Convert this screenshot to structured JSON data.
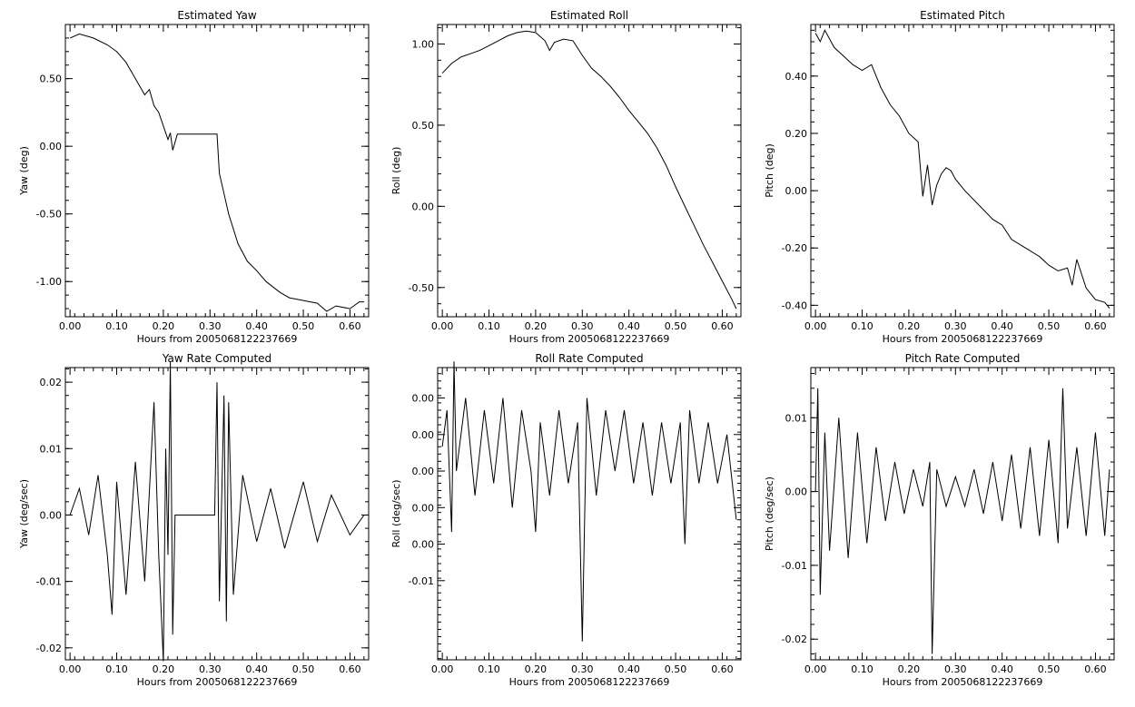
{
  "chart_data": [
    {
      "type": "line",
      "title": "Estimated Yaw",
      "xlabel": "Hours from 2005068122237669",
      "ylabel": "Yaw (deg)",
      "xlim": [
        -0.01,
        0.64
      ],
      "ylim": [
        -1.26,
        0.9
      ],
      "xticks": [
        "0.00",
        "0.10",
        "0.20",
        "0.30",
        "0.40",
        "0.50",
        "0.60"
      ],
      "xtick_values": [
        0.0,
        0.1,
        0.2,
        0.3,
        0.4,
        0.5,
        0.6
      ],
      "yticks": [
        "0.50",
        "0.00",
        "-0.50",
        "-1.00"
      ],
      "ytick_values": [
        0.5,
        0.0,
        -0.5,
        -1.0
      ],
      "series": [
        {
          "x": [
            0.0,
            0.02,
            0.05,
            0.08,
            0.1,
            0.12,
            0.14,
            0.16,
            0.17,
            0.18,
            0.19,
            0.2,
            0.21,
            0.215,
            0.22,
            0.23,
            0.26,
            0.29,
            0.31,
            0.315,
            0.32,
            0.33,
            0.34,
            0.36,
            0.38,
            0.4,
            0.42,
            0.45,
            0.47,
            0.5,
            0.53,
            0.55,
            0.57,
            0.6,
            0.62,
            0.63
          ],
          "y": [
            0.8,
            0.83,
            0.8,
            0.75,
            0.7,
            0.62,
            0.5,
            0.38,
            0.42,
            0.3,
            0.25,
            0.15,
            0.05,
            0.1,
            -0.03,
            0.09,
            0.09,
            0.09,
            0.09,
            0.09,
            -0.2,
            -0.35,
            -0.5,
            -0.72,
            -0.85,
            -0.92,
            -1.0,
            -1.08,
            -1.12,
            -1.14,
            -1.16,
            -1.22,
            -1.18,
            -1.2,
            -1.15,
            -1.15
          ]
        }
      ]
    },
    {
      "type": "line",
      "title": "Estimated Roll",
      "xlabel": "Hours from 2005068122237669",
      "ylabel": "Roll (deg)",
      "xlim": [
        -0.01,
        0.64
      ],
      "ylim": [
        -0.68,
        1.12
      ],
      "xticks": [
        "0.00",
        "0.10",
        "0.20",
        "0.30",
        "0.40",
        "0.50",
        "0.60"
      ],
      "xtick_values": [
        0.0,
        0.1,
        0.2,
        0.3,
        0.4,
        0.5,
        0.6
      ],
      "yticks": [
        "1.00",
        "0.50",
        "0.00",
        "-0.50"
      ],
      "ytick_values": [
        1.0,
        0.5,
        0.0,
        -0.5
      ],
      "series": [
        {
          "x": [
            0.0,
            0.02,
            0.04,
            0.06,
            0.08,
            0.1,
            0.12,
            0.14,
            0.16,
            0.18,
            0.2,
            0.22,
            0.23,
            0.24,
            0.26,
            0.28,
            0.3,
            0.32,
            0.34,
            0.36,
            0.38,
            0.4,
            0.42,
            0.44,
            0.46,
            0.48,
            0.5,
            0.52,
            0.54,
            0.56,
            0.58,
            0.6,
            0.62,
            0.63
          ],
          "y": [
            0.82,
            0.88,
            0.92,
            0.94,
            0.96,
            0.99,
            1.02,
            1.05,
            1.07,
            1.08,
            1.07,
            1.02,
            0.96,
            1.01,
            1.03,
            1.02,
            0.93,
            0.85,
            0.8,
            0.74,
            0.67,
            0.59,
            0.52,
            0.45,
            0.36,
            0.25,
            0.12,
            0.0,
            -0.12,
            -0.24,
            -0.35,
            -0.46,
            -0.57,
            -0.63
          ]
        }
      ]
    },
    {
      "type": "line",
      "title": "Estimated Pitch",
      "xlabel": "Hours from 2005068122237669",
      "ylabel": "Pitch (deg)",
      "xlim": [
        -0.01,
        0.64
      ],
      "ylim": [
        -0.44,
        0.58
      ],
      "xticks": [
        "0.00",
        "0.10",
        "0.20",
        "0.30",
        "0.40",
        "0.50",
        "0.60"
      ],
      "xtick_values": [
        0.0,
        0.1,
        0.2,
        0.3,
        0.4,
        0.5,
        0.6
      ],
      "yticks": [
        "0.40",
        "0.20",
        "0.00",
        "-0.20",
        "-0.40"
      ],
      "ytick_values": [
        0.4,
        0.2,
        0.0,
        -0.2,
        -0.4
      ],
      "series": [
        {
          "x": [
            0.0,
            0.01,
            0.02,
            0.04,
            0.06,
            0.08,
            0.1,
            0.12,
            0.14,
            0.16,
            0.18,
            0.2,
            0.22,
            0.23,
            0.24,
            0.25,
            0.26,
            0.27,
            0.28,
            0.29,
            0.3,
            0.32,
            0.35,
            0.38,
            0.4,
            0.42,
            0.45,
            0.48,
            0.5,
            0.52,
            0.54,
            0.55,
            0.56,
            0.58,
            0.6,
            0.62,
            0.63
          ],
          "y": [
            0.55,
            0.52,
            0.56,
            0.5,
            0.47,
            0.44,
            0.42,
            0.44,
            0.36,
            0.3,
            0.26,
            0.2,
            0.17,
            -0.02,
            0.09,
            -0.05,
            0.02,
            0.06,
            0.08,
            0.07,
            0.04,
            0.0,
            -0.05,
            -0.1,
            -0.12,
            -0.17,
            -0.2,
            -0.23,
            -0.26,
            -0.28,
            -0.27,
            -0.33,
            -0.24,
            -0.34,
            -0.38,
            -0.39,
            -0.41
          ]
        }
      ]
    },
    {
      "type": "line",
      "title": "Yaw Rate Computed",
      "xlabel": "Hours from 2005068122237669",
      "ylabel": "Yaw (deg/sec)",
      "xlim": [
        -0.01,
        0.64
      ],
      "ylim": [
        -0.0218,
        0.0222
      ],
      "xticks": [
        "0.00",
        "0.10",
        "0.20",
        "0.30",
        "0.40",
        "0.50",
        "0.60"
      ],
      "xtick_values": [
        0.0,
        0.1,
        0.2,
        0.3,
        0.4,
        0.5,
        0.6
      ],
      "yticks": [
        "0.02",
        "0.01",
        "0.00",
        "-0.01",
        "-0.02"
      ],
      "ytick_values": [
        0.02,
        0.01,
        0.0,
        -0.01,
        -0.02
      ],
      "series": [
        {
          "x": [
            0.0,
            0.02,
            0.04,
            0.06,
            0.08,
            0.09,
            0.1,
            0.12,
            0.14,
            0.16,
            0.18,
            0.19,
            0.2,
            0.205,
            0.21,
            0.215,
            0.22,
            0.225,
            0.23,
            0.26,
            0.29,
            0.31,
            0.315,
            0.32,
            0.33,
            0.335,
            0.34,
            0.35,
            0.37,
            0.4,
            0.43,
            0.46,
            0.5,
            0.53,
            0.56,
            0.6,
            0.63
          ],
          "y": [
            0.0,
            0.004,
            -0.003,
            0.006,
            -0.006,
            -0.015,
            0.005,
            -0.012,
            0.008,
            -0.01,
            0.017,
            -0.006,
            -0.022,
            0.01,
            -0.006,
            0.023,
            -0.018,
            0.0,
            0.0,
            0.0,
            0.0,
            0.0,
            0.02,
            -0.013,
            0.018,
            -0.016,
            0.017,
            -0.012,
            0.006,
            -0.004,
            0.004,
            -0.005,
            0.005,
            -0.004,
            0.003,
            -0.003,
            0.0
          ]
        }
      ]
    },
    {
      "type": "line",
      "title": "Roll Rate Computed",
      "xlabel": "Hours from 2005068122237669",
      "ylabel": "Roll (deg/sec)",
      "xlim": [
        -0.01,
        0.64
      ],
      "ylim": [
        -0.0175,
        0.0065
      ],
      "xticks": [
        "0.00",
        "0.10",
        "0.20",
        "0.30",
        "0.40",
        "0.50",
        "0.60"
      ],
      "xtick_values": [
        0.0,
        0.1,
        0.2,
        0.3,
        0.4,
        0.5,
        0.6
      ],
      "yticks": [
        "0.00",
        "0.00",
        "0.00",
        "0.00",
        "0.00",
        "-0.01"
      ],
      "ytick_values": [
        0.004,
        0.001,
        -0.002,
        -0.005,
        -0.008,
        -0.011
      ],
      "series": [
        {
          "x": [
            0.0,
            0.01,
            0.02,
            0.025,
            0.03,
            0.05,
            0.07,
            0.09,
            0.11,
            0.13,
            0.15,
            0.17,
            0.19,
            0.2,
            0.21,
            0.23,
            0.25,
            0.27,
            0.29,
            0.3,
            0.31,
            0.33,
            0.35,
            0.37,
            0.39,
            0.41,
            0.43,
            0.45,
            0.47,
            0.49,
            0.51,
            0.52,
            0.53,
            0.55,
            0.57,
            0.59,
            0.61,
            0.63
          ],
          "y": [
            0.0,
            0.003,
            -0.007,
            0.007,
            -0.002,
            0.004,
            -0.004,
            0.003,
            -0.003,
            0.004,
            -0.005,
            0.003,
            -0.002,
            -0.007,
            0.002,
            -0.004,
            0.003,
            -0.003,
            0.002,
            -0.016,
            0.004,
            -0.004,
            0.003,
            -0.002,
            0.003,
            -0.003,
            0.002,
            -0.004,
            0.002,
            -0.003,
            0.002,
            -0.008,
            0.003,
            -0.003,
            0.002,
            -0.003,
            0.001,
            -0.006
          ]
        }
      ]
    },
    {
      "type": "line",
      "title": "Pitch Rate Computed",
      "xlabel": "Hours from 2005068122237669",
      "ylabel": "Pitch (deg/sec)",
      "xlim": [
        -0.01,
        0.64
      ],
      "ylim": [
        -0.0228,
        0.0168
      ],
      "xticks": [
        "0.00",
        "0.10",
        "0.20",
        "0.30",
        "0.40",
        "0.50",
        "0.60"
      ],
      "xtick_values": [
        0.0,
        0.1,
        0.2,
        0.3,
        0.4,
        0.5,
        0.6
      ],
      "yticks": [
        "0.01",
        "0.00",
        "-0.01",
        "-0.02"
      ],
      "ytick_values": [
        0.01,
        0.0,
        -0.01,
        -0.02
      ],
      "series": [
        {
          "x": [
            0.0,
            0.005,
            0.01,
            0.02,
            0.03,
            0.05,
            0.07,
            0.09,
            0.11,
            0.13,
            0.15,
            0.17,
            0.19,
            0.21,
            0.23,
            0.245,
            0.25,
            0.26,
            0.28,
            0.3,
            0.32,
            0.34,
            0.36,
            0.38,
            0.4,
            0.42,
            0.44,
            0.46,
            0.48,
            0.5,
            0.52,
            0.53,
            0.54,
            0.56,
            0.58,
            0.6,
            0.62,
            0.63
          ],
          "y": [
            0.0,
            0.014,
            -0.014,
            0.008,
            -0.008,
            0.01,
            -0.009,
            0.008,
            -0.007,
            0.006,
            -0.004,
            0.004,
            -0.003,
            0.003,
            -0.002,
            0.004,
            -0.022,
            0.003,
            -0.002,
            0.002,
            -0.002,
            0.003,
            -0.003,
            0.004,
            -0.004,
            0.005,
            -0.005,
            0.006,
            -0.006,
            0.007,
            -0.007,
            0.014,
            -0.005,
            0.006,
            -0.006,
            0.008,
            -0.006,
            0.003
          ]
        }
      ]
    }
  ]
}
